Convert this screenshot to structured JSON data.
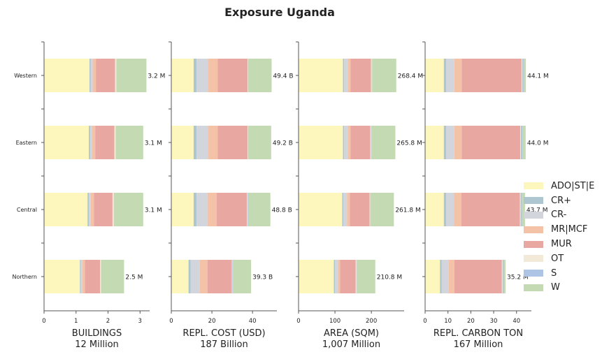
{
  "title": "Exposure Uganda",
  "legend": [
    {
      "name": "ADO|ST|E",
      "color": "#fef7bd"
    },
    {
      "name": "CR+",
      "color": "#aec6cf"
    },
    {
      "name": "CR-",
      "color": "#d2d6dc"
    },
    {
      "name": "MR|MCF",
      "color": "#f4c2a7"
    },
    {
      "name": "MUR",
      "color": "#e8a7a0"
    },
    {
      "name": "OT",
      "color": "#f3e9d9"
    },
    {
      "name": "S",
      "color": "#aec4e4"
    },
    {
      "name": "W",
      "color": "#c4dab3"
    }
  ],
  "chart_data": [
    {
      "type": "bar",
      "orientation": "horizontal",
      "stacked": true,
      "categories": [
        "Western",
        "Eastern",
        "Central",
        "Northern"
      ],
      "xlabel": "BUILDINGS",
      "xlabel2": "12 Million",
      "xlim": [
        0,
        3.3
      ],
      "xticks": [
        0,
        1,
        2,
        3
      ],
      "series": [
        {
          "name": "ADO|ST|E",
          "values": [
            1.42,
            1.4,
            1.36,
            1.12
          ]
        },
        {
          "name": "CR+",
          "values": [
            0.04,
            0.04,
            0.04,
            0.03
          ]
        },
        {
          "name": "CR-",
          "values": [
            0.06,
            0.06,
            0.06,
            0.05
          ]
        },
        {
          "name": "MR|MCF",
          "values": [
            0.1,
            0.1,
            0.1,
            0.08
          ]
        },
        {
          "name": "MUR",
          "values": [
            0.6,
            0.6,
            0.58,
            0.47
          ]
        },
        {
          "name": "OT",
          "values": [
            0.04,
            0.04,
            0.04,
            0.03
          ]
        },
        {
          "name": "S",
          "values": [
            0.0,
            0.0,
            0.0,
            0.0
          ]
        },
        {
          "name": "W",
          "values": [
            0.94,
            0.86,
            0.92,
            0.72
          ]
        }
      ],
      "labels": [
        "3.2 M",
        "3.1 M",
        "3.1 M",
        "2.5 M"
      ]
    },
    {
      "type": "bar",
      "orientation": "horizontal",
      "stacked": true,
      "categories": [
        "Western",
        "Eastern",
        "Central",
        "Northern"
      ],
      "xlabel": "REPL. COST (USD)",
      "xlabel2": "187 Billion",
      "xlim": [
        0,
        52
      ],
      "xticks": [
        0,
        20,
        40
      ],
      "series": [
        {
          "name": "ADO|ST|E",
          "values": [
            11.0,
            11.0,
            11.0,
            8.5
          ]
        },
        {
          "name": "CR+",
          "values": [
            1.5,
            1.5,
            1.5,
            1.0
          ]
        },
        {
          "name": "CR-",
          "values": [
            5.5,
            5.5,
            5.3,
            4.5
          ]
        },
        {
          "name": "MR|MCF",
          "values": [
            4.8,
            4.8,
            4.6,
            3.8
          ]
        },
        {
          "name": "MUR",
          "values": [
            14.8,
            14.8,
            14.8,
            12.0
          ]
        },
        {
          "name": "OT",
          "values": [
            0.3,
            0.3,
            0.3,
            0.3
          ]
        },
        {
          "name": "S",
          "values": [
            0.3,
            0.3,
            0.3,
            0.3
          ]
        },
        {
          "name": "W",
          "values": [
            11.2,
            11.0,
            11.0,
            8.9
          ]
        }
      ],
      "labels": [
        "49.4 B",
        "49.2 B",
        "48.8 B",
        "39.3 B"
      ]
    },
    {
      "type": "bar",
      "orientation": "horizontal",
      "stacked": true,
      "categories": [
        "Western",
        "Eastern",
        "Central",
        "Northern"
      ],
      "xlabel": "AREA (SQM)",
      "xlabel2": "1,007 Million",
      "xlim": [
        0,
        290
      ],
      "xticks": [
        0,
        100,
        200
      ],
      "series": [
        {
          "name": "ADO|ST|E",
          "values": [
            122,
            122,
            120,
            97
          ]
        },
        {
          "name": "CR+",
          "values": [
            3,
            3,
            3,
            3
          ]
        },
        {
          "name": "CR-",
          "values": [
            10,
            10,
            10,
            8
          ]
        },
        {
          "name": "MR|MCF",
          "values": [
            8,
            8,
            8,
            6
          ]
        },
        {
          "name": "MUR",
          "values": [
            56,
            54,
            54,
            43
          ]
        },
        {
          "name": "OT",
          "values": [
            2,
            2,
            2,
            2
          ]
        },
        {
          "name": "S",
          "values": [
            1,
            1,
            1,
            1
          ]
        },
        {
          "name": "W",
          "values": [
            66.4,
            65.8,
            63.8,
            50.8
          ]
        }
      ],
      "labels": [
        "268.4 M",
        "265.8 M",
        "261.8 M",
        "210.8 M"
      ]
    },
    {
      "type": "bar",
      "orientation": "horizontal",
      "stacked": true,
      "categories": [
        "Western",
        "Eastern",
        "Central",
        "Northern"
      ],
      "xlabel": "REPL. CARBON TON",
      "xlabel2": "167 Million",
      "xlim": [
        0,
        46.5
      ],
      "xticks": [
        0,
        10,
        20,
        30,
        40
      ],
      "series": [
        {
          "name": "ADO|ST|E",
          "values": [
            8.2,
            8.2,
            8.2,
            6.5
          ]
        },
        {
          "name": "CR+",
          "values": [
            1.0,
            1.0,
            1.0,
            0.8
          ]
        },
        {
          "name": "CR-",
          "values": [
            3.6,
            3.6,
            3.5,
            3.0
          ]
        },
        {
          "name": "MR|MCF",
          "values": [
            3.2,
            3.2,
            3.2,
            2.5
          ]
        },
        {
          "name": "MUR",
          "values": [
            26.2,
            25.6,
            25.6,
            20.8
          ]
        },
        {
          "name": "OT",
          "values": [
            0.3,
            0.3,
            0.3,
            0.3
          ]
        },
        {
          "name": "S",
          "values": [
            0.6,
            0.6,
            0.6,
            0.5
          ]
        },
        {
          "name": "W",
          "values": [
            1.0,
            1.5,
            1.3,
            0.8
          ]
        }
      ],
      "labels": [
        "44.1 M",
        "44.0 M",
        "43.7 M",
        "35.2 M"
      ]
    }
  ]
}
